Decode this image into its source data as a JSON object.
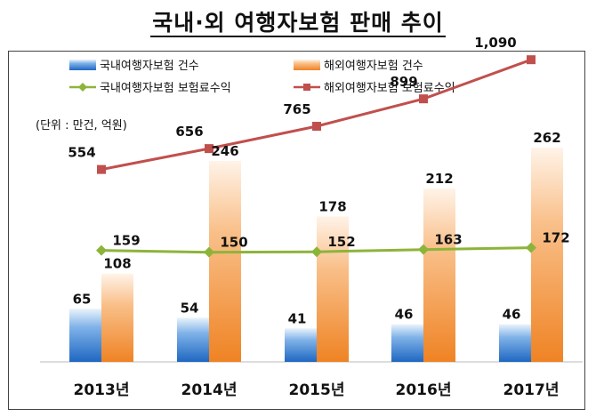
{
  "title": "국내·외 여행자보험 판매 추이",
  "unit_note": "(단위 : 만건, 억원)",
  "colors": {
    "domestic_bar": "#2e75c8",
    "overseas_bar": "#f28c28",
    "domestic_line": "#8db43a",
    "overseas_line": "#c0504d"
  },
  "chart_data": {
    "type": "bar",
    "categories": [
      "2013년",
      "2014년",
      "2015년",
      "2016년",
      "2017년"
    ],
    "series": [
      {
        "name": "국내여행자보험 건수",
        "type": "bar",
        "values": [
          65,
          54,
          41,
          46,
          46
        ]
      },
      {
        "name": "해외여행자보험 건수",
        "type": "bar",
        "values": [
          108,
          246,
          178,
          212,
          262
        ]
      },
      {
        "name": "국내여행자보험 보험료수익",
        "type": "line",
        "values": [
          159,
          150,
          152,
          163,
          172
        ]
      },
      {
        "name": "해외여행자보험 보험료수익",
        "type": "line",
        "values": [
          554,
          656,
          765,
          899,
          1090
        ]
      }
    ],
    "value_labels": {
      "domestic_count": [
        "65",
        "54",
        "41",
        "46",
        "46"
      ],
      "overseas_count": [
        "108",
        "246",
        "178",
        "212",
        "262"
      ],
      "domestic_premium": [
        "159",
        "150",
        "152",
        "163",
        "172"
      ],
      "overseas_premium": [
        "554",
        "656",
        "765",
        "899",
        "1,090"
      ]
    },
    "legend_position": "top-left",
    "grid": false
  }
}
